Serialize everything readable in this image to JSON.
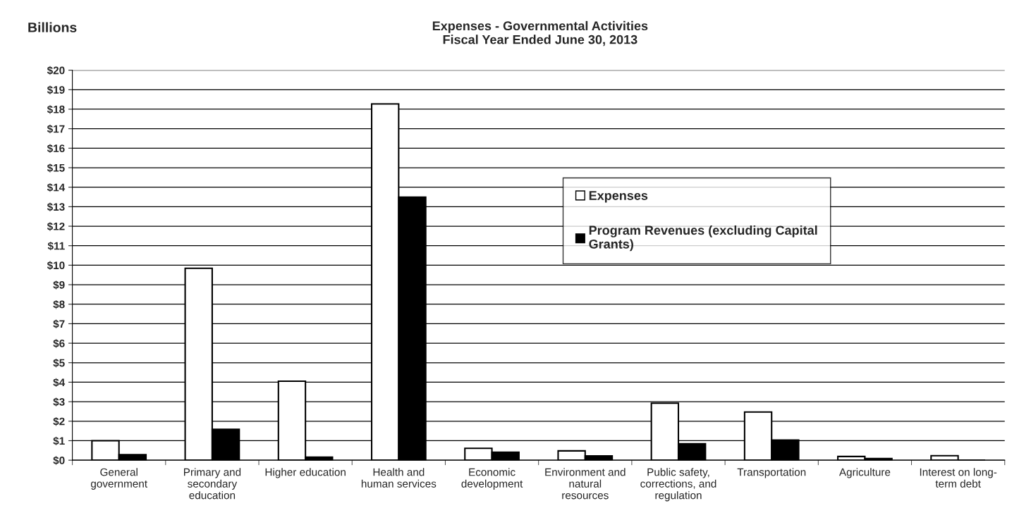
{
  "chart_data": {
    "type": "bar",
    "title": "Expenses - Governmental Activities\nFiscal Year Ended June 30, 2013",
    "ylabel": "Billions",
    "categories": [
      "General\ngovernment",
      "Primary and\nsecondary\neducation",
      "Higher education",
      "Health and\nhuman services",
      "Economic\ndevelopment",
      "Environment and\nnatural\nresources",
      "Public safety,\ncorrections, and\nregulation",
      "Transportation",
      "Agriculture",
      "Interest on long-\nterm debt"
    ],
    "series": [
      {
        "name": "Expenses",
        "color": "#ffffff",
        "values": [
          1.0,
          9.84,
          4.05,
          18.27,
          0.61,
          0.48,
          2.92,
          2.47,
          0.19,
          0.23
        ]
      },
      {
        "name": "Program Revenues (excluding Capital\nGrants)",
        "color": "#000000",
        "values": [
          0.28,
          1.58,
          0.16,
          13.49,
          0.41,
          0.22,
          0.84,
          1.03,
          0.08,
          0
        ]
      }
    ],
    "ylim": [
      0,
      20
    ],
    "yticks": [
      {
        "value": 0,
        "label": "$0"
      },
      {
        "value": 1,
        "label": "$1"
      },
      {
        "value": 2,
        "label": "$2"
      },
      {
        "value": 3,
        "label": "$3"
      },
      {
        "value": 4,
        "label": "$4"
      },
      {
        "value": 5,
        "label": "$5"
      },
      {
        "value": 6,
        "label": "$6"
      },
      {
        "value": 7,
        "label": "$7"
      },
      {
        "value": 8,
        "label": "$8"
      },
      {
        "value": 9,
        "label": "$9"
      },
      {
        "value": 10,
        "label": "$10"
      },
      {
        "value": 11,
        "label": "$11"
      },
      {
        "value": 12,
        "label": "$12"
      },
      {
        "value": 13,
        "label": "$13"
      },
      {
        "value": 14,
        "label": "$14"
      },
      {
        "value": 15,
        "label": "$15"
      },
      {
        "value": 16,
        "label": "$16"
      },
      {
        "value": 17,
        "label": "$17"
      },
      {
        "value": 18,
        "label": "$18"
      },
      {
        "value": 19,
        "label": "$19"
      },
      {
        "value": 20,
        "label": "$20"
      }
    ],
    "grid": "y",
    "legend": "top right"
  }
}
